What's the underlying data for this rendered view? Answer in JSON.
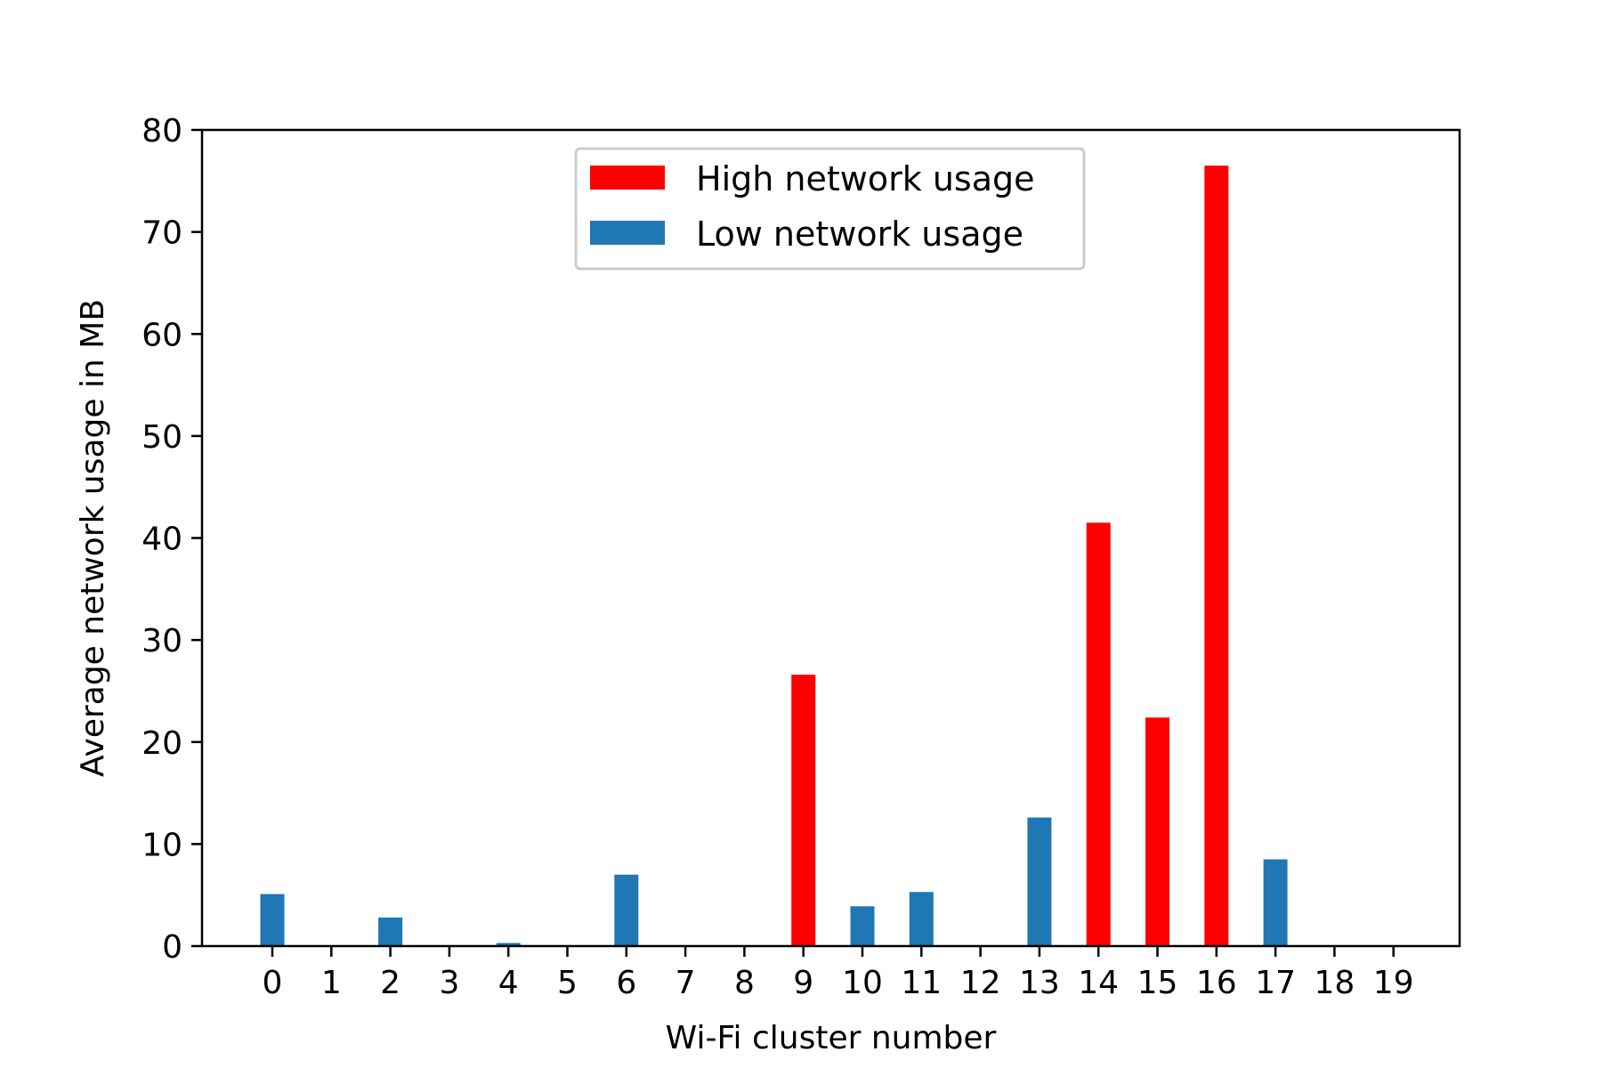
{
  "chart_data": {
    "type": "bar",
    "title": "",
    "xlabel": "Wi-Fi cluster number",
    "ylabel": "Average network usage in MB",
    "categories": [
      "0",
      "1",
      "2",
      "3",
      "4",
      "5",
      "6",
      "7",
      "8",
      "9",
      "10",
      "11",
      "12",
      "13",
      "14",
      "15",
      "16",
      "17",
      "18",
      "19"
    ],
    "values": [
      5.1,
      0,
      2.8,
      0,
      0.3,
      0,
      7.0,
      0,
      0,
      26.6,
      3.9,
      5.3,
      0,
      12.6,
      41.5,
      22.4,
      76.5,
      8.5,
      0,
      0
    ],
    "groups": [
      "low",
      "low",
      "low",
      "low",
      "low",
      "low",
      "low",
      "low",
      "low",
      "high",
      "low",
      "low",
      "low",
      "low",
      "high",
      "high",
      "high",
      "low",
      "low",
      "low"
    ],
    "series": [
      {
        "key": "high",
        "name": "High network usage",
        "color": "#ff0000"
      },
      {
        "key": "low",
        "name": "Low network usage",
        "color": "#1f77b4"
      }
    ],
    "ylim": [
      0,
      80
    ],
    "yticks": [
      "0",
      "10",
      "20",
      "30",
      "40",
      "50",
      "60",
      "70",
      "80"
    ],
    "grid": false,
    "legend_position": "top-center"
  }
}
